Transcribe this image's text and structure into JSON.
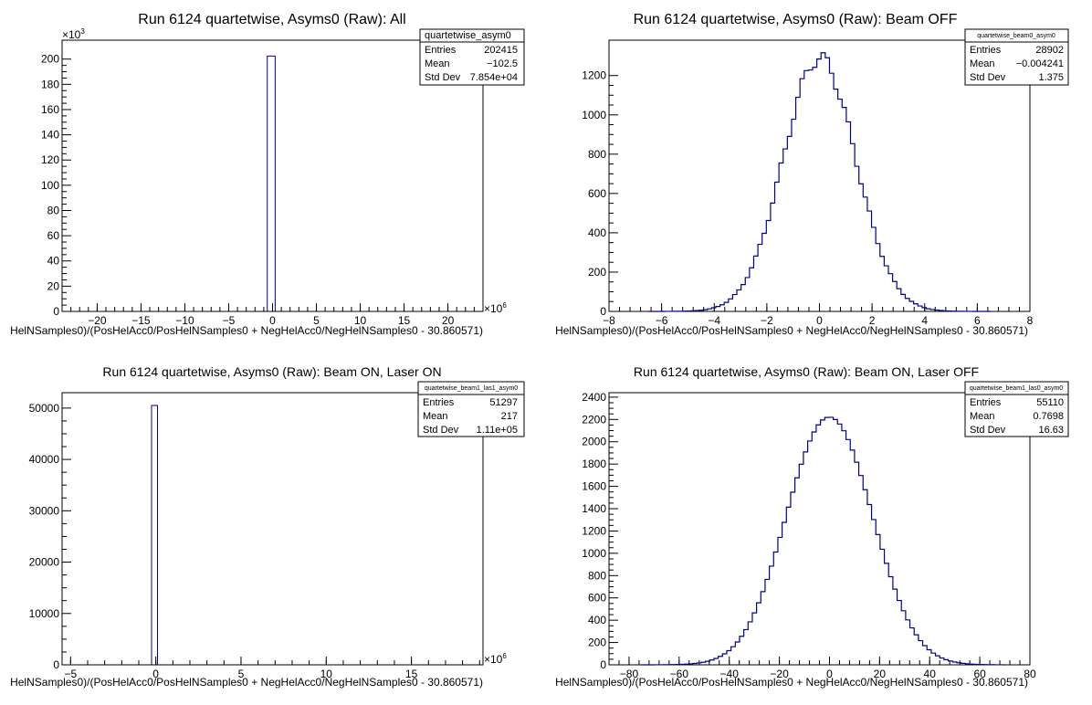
{
  "chart_data": [
    {
      "type": "histogram",
      "title": "Run 6124 quartetwise, Asyms0 (Raw): All",
      "xlabel": "HelNSamples0)/(PosHelAcc0/PosHelNSamples0 + NegHelAcc0/NegHelNSamples0 - 30.860571)",
      "x_exponent": "×10",
      "x_exponent_power": "6",
      "y_exponent": "×10",
      "y_exponent_power": "3",
      "xlim": [
        -24,
        24
      ],
      "ylim": [
        0,
        215
      ],
      "x_ticks": [
        -20,
        -15,
        -10,
        -5,
        0,
        5,
        10,
        15,
        20
      ],
      "y_ticks": [
        0,
        20,
        40,
        60,
        80,
        100,
        120,
        140,
        160,
        180,
        200
      ],
      "line_color": "#00008b",
      "bars": [
        {
          "x0": -0.6,
          "x1": 0.3,
          "value": 202.4
        }
      ],
      "stats": {
        "name": "quartetwise_asym0",
        "rows": [
          {
            "label": "Entries",
            "value": "202415"
          },
          {
            "label": "Mean",
            "value": "−102.5"
          },
          {
            "label": "Std Dev",
            "value": "7.854e+04"
          }
        ]
      }
    },
    {
      "type": "histogram",
      "title": "Run 6124 quartetwise, Asyms0 (Raw): Beam OFF",
      "xlabel": "HelNSamples0)/(PosHelAcc0/PosHelNSamples0 + NegHelAcc0/NegHelNSamples0 - 30.860571)",
      "xlim": [
        -8,
        8
      ],
      "ylim": [
        0,
        1380
      ],
      "x_ticks": [
        -8,
        -6,
        -4,
        -2,
        0,
        2,
        4,
        6,
        8
      ],
      "y_ticks": [
        0,
        200,
        400,
        600,
        800,
        1000,
        1200
      ],
      "line_color": "#00008b",
      "gaussian": {
        "peak": 1290,
        "sigma": 1.375,
        "mean": 0,
        "xmin": -6.5,
        "xmax": 6.5,
        "step": 0.16
      },
      "stats": {
        "name": "quartetwise_beam0_asym0",
        "rows": [
          {
            "label": "Entries",
            "value": "28902"
          },
          {
            "label": "Mean",
            "value": "−0.004241"
          },
          {
            "label": "Std Dev",
            "value": "1.375"
          }
        ]
      }
    },
    {
      "type": "histogram",
      "title": "Run 6124 quartetwise, Asyms0 (Raw): Beam ON, Laser ON",
      "xlabel": "HelNSamples0)/(PosHelAcc0/PosHelNSamples0 + NegHelAcc0/NegHelNSamples0 - 30.860571)",
      "x_exponent": "×10",
      "x_exponent_power": "6",
      "xlim": [
        -5.5,
        19.2
      ],
      "ylim": [
        0,
        53000
      ],
      "x_ticks": [
        -5,
        0,
        5,
        10,
        15
      ],
      "y_ticks": [
        0,
        10000,
        20000,
        30000,
        40000,
        50000
      ],
      "line_color": "#00008b",
      "bars": [
        {
          "x0": -0.25,
          "x1": 0.1,
          "value": 50500
        }
      ],
      "stats": {
        "name": "quartetwise_beam1_las1_asym0",
        "rows": [
          {
            "label": "Entries",
            "value": "51297"
          },
          {
            "label": "Mean",
            "value": "217"
          },
          {
            "label": "Std Dev",
            "value": "1.11e+05"
          }
        ]
      }
    },
    {
      "type": "histogram",
      "title": "Run 6124 quartetwise, Asyms0 (Raw): Beam ON, Laser OFF",
      "xlabel": "HelNSamples0)/(PosHelAcc0/PosHelNSamples0 + NegHelAcc0/NegHelNSamples0 - 30.860571)",
      "xlim": [
        -88,
        80
      ],
      "ylim": [
        0,
        2440
      ],
      "x_ticks": [
        -80,
        -60,
        -40,
        -20,
        0,
        20,
        40,
        60,
        80
      ],
      "y_ticks": [
        0,
        200,
        400,
        600,
        800,
        1000,
        1200,
        1400,
        1600,
        1800,
        2000,
        2200,
        2400
      ],
      "line_color": "#00008b",
      "gaussian": {
        "peak": 2290,
        "sigma": 16.63,
        "mean": 0,
        "xmin": -75,
        "xmax": 70,
        "step": 1.7
      },
      "stats": {
        "name": "quartetwise_beam1_las0_asym0",
        "rows": [
          {
            "label": "Entries",
            "value": "55110"
          },
          {
            "label": "Mean",
            "value": "0.7698"
          },
          {
            "label": "Std Dev",
            "value": "16.63"
          }
        ]
      }
    }
  ]
}
